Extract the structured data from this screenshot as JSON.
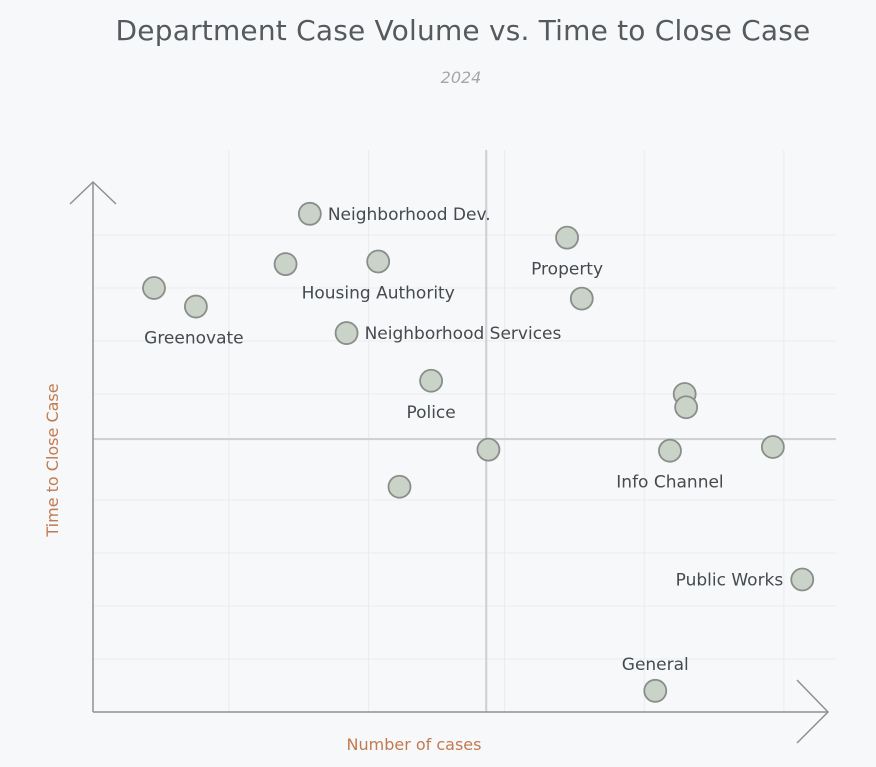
{
  "chart_data": {
    "type": "scatter",
    "title": "Department Case Volume vs. Time to Close Case",
    "subtitle": "2024",
    "xlabel": "Number of cases",
    "ylabel": "Time to Close Case",
    "xlim": [
      0,
      100
    ],
    "ylim": [
      0,
      100
    ],
    "grid": true,
    "axis_ticks_shown": false,
    "reference_lines": {
      "x": 53.5,
      "y": 51.5
    },
    "colors": {
      "marker_fill": "#c9d3c7",
      "marker_stroke": "#8b8d8a",
      "axis_title": "#c27a50"
    },
    "points": [
      {
        "x": 29.5,
        "y": 94.0,
        "label": "Neighborhood Dev.",
        "label_pos": "right"
      },
      {
        "x": 64.5,
        "y": 89.5,
        "label": "Property",
        "label_pos": "below"
      },
      {
        "x": 26.2,
        "y": 84.5,
        "label": "",
        "label_pos": "none"
      },
      {
        "x": 38.8,
        "y": 85.0,
        "label": "Housing Authority",
        "label_pos": "below"
      },
      {
        "x": 8.3,
        "y": 80.0,
        "label": "",
        "label_pos": "none"
      },
      {
        "x": 14.0,
        "y": 76.5,
        "label": "Greenovate",
        "label_pos": "below-left"
      },
      {
        "x": 66.5,
        "y": 78.0,
        "label": "",
        "label_pos": "none"
      },
      {
        "x": 34.5,
        "y": 71.5,
        "label": "Neighborhood Services",
        "label_pos": "right"
      },
      {
        "x": 46.0,
        "y": 62.5,
        "label": "Police",
        "label_pos": "below"
      },
      {
        "x": 80.5,
        "y": 60.0,
        "label": "",
        "label_pos": "none"
      },
      {
        "x": 80.7,
        "y": 57.5,
        "label": "",
        "label_pos": "none"
      },
      {
        "x": 53.8,
        "y": 49.5,
        "label": "",
        "label_pos": "none"
      },
      {
        "x": 78.5,
        "y": 49.3,
        "label": "Info Channel",
        "label_pos": "below"
      },
      {
        "x": 92.5,
        "y": 50.0,
        "label": "",
        "label_pos": "none"
      },
      {
        "x": 41.7,
        "y": 42.5,
        "label": "",
        "label_pos": "none"
      },
      {
        "x": 96.5,
        "y": 25.0,
        "label": "Public Works",
        "label_pos": "left"
      },
      {
        "x": 76.5,
        "y": 4.0,
        "label": "General",
        "label_pos": "above"
      }
    ]
  }
}
